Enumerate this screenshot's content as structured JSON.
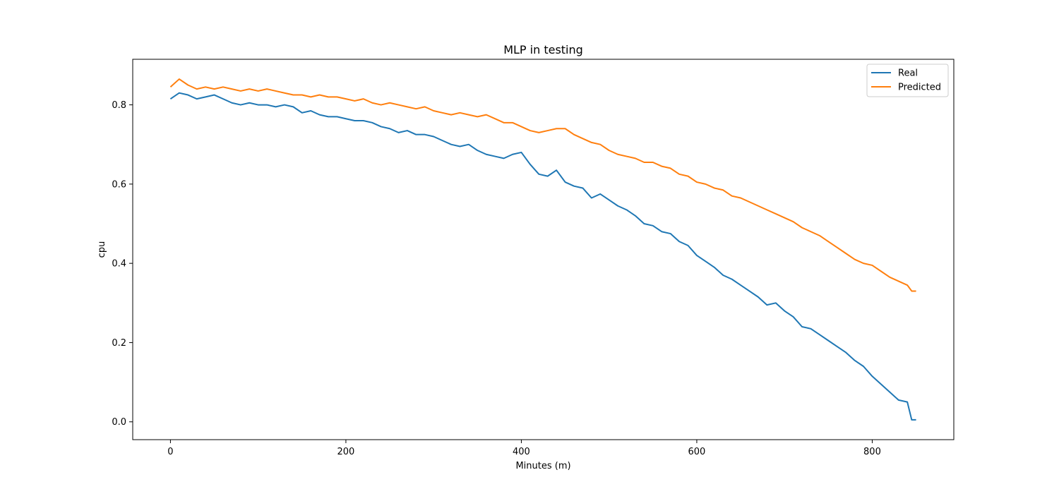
{
  "chart_data": {
    "type": "line",
    "title": "MLP in testing",
    "xlabel": "Minutes (m)",
    "ylabel": "cpu",
    "xlim": [
      -43,
      893
    ],
    "ylim": [
      -0.045,
      0.915
    ],
    "xticks": [
      0,
      200,
      400,
      600,
      800
    ],
    "xtick_labels": [
      "0",
      "200",
      "400",
      "600",
      "800"
    ],
    "yticks": [
      0.0,
      0.2,
      0.4,
      0.6,
      0.8
    ],
    "ytick_labels": [
      "0.0",
      "0.2",
      "0.4",
      "0.6",
      "0.8"
    ],
    "grid": false,
    "legend_position": "upper right",
    "series": [
      {
        "name": "Real",
        "color": "#1f77b4",
        "x": [
          0,
          10,
          20,
          30,
          40,
          50,
          60,
          70,
          80,
          90,
          100,
          110,
          120,
          130,
          140,
          150,
          160,
          170,
          180,
          190,
          200,
          210,
          220,
          230,
          240,
          250,
          260,
          270,
          280,
          290,
          300,
          310,
          320,
          330,
          340,
          350,
          360,
          370,
          380,
          390,
          400,
          410,
          420,
          430,
          440,
          450,
          460,
          470,
          480,
          490,
          500,
          510,
          520,
          530,
          540,
          550,
          560,
          570,
          580,
          590,
          600,
          610,
          620,
          630,
          640,
          650,
          660,
          670,
          680,
          690,
          700,
          710,
          720,
          730,
          740,
          750,
          760,
          770,
          780,
          790,
          800,
          810,
          820,
          830,
          840,
          845,
          850
        ],
        "y": [
          0.815,
          0.83,
          0.825,
          0.815,
          0.82,
          0.825,
          0.815,
          0.805,
          0.8,
          0.805,
          0.8,
          0.8,
          0.795,
          0.8,
          0.795,
          0.78,
          0.785,
          0.775,
          0.77,
          0.77,
          0.765,
          0.76,
          0.76,
          0.755,
          0.745,
          0.74,
          0.73,
          0.735,
          0.725,
          0.725,
          0.72,
          0.71,
          0.7,
          0.695,
          0.7,
          0.685,
          0.675,
          0.67,
          0.665,
          0.675,
          0.68,
          0.65,
          0.625,
          0.62,
          0.635,
          0.605,
          0.595,
          0.59,
          0.565,
          0.575,
          0.56,
          0.545,
          0.535,
          0.52,
          0.5,
          0.495,
          0.48,
          0.475,
          0.455,
          0.445,
          0.42,
          0.405,
          0.39,
          0.37,
          0.36,
          0.345,
          0.33,
          0.315,
          0.295,
          0.3,
          0.28,
          0.265,
          0.24,
          0.235,
          0.22,
          0.205,
          0.19,
          0.175,
          0.155,
          0.14,
          0.115,
          0.095,
          0.075,
          0.055,
          0.05,
          0.005,
          0.005
        ]
      },
      {
        "name": "Predicted",
        "color": "#ff7f0e",
        "x": [
          0,
          10,
          20,
          30,
          40,
          50,
          60,
          70,
          80,
          90,
          100,
          110,
          120,
          130,
          140,
          150,
          160,
          170,
          180,
          190,
          200,
          210,
          220,
          230,
          240,
          250,
          260,
          270,
          280,
          290,
          300,
          310,
          320,
          330,
          340,
          350,
          360,
          370,
          380,
          390,
          400,
          410,
          420,
          430,
          440,
          450,
          460,
          470,
          480,
          490,
          500,
          510,
          520,
          530,
          540,
          550,
          560,
          570,
          580,
          590,
          600,
          610,
          620,
          630,
          640,
          650,
          660,
          670,
          680,
          690,
          700,
          710,
          720,
          730,
          740,
          750,
          760,
          770,
          780,
          790,
          800,
          810,
          820,
          830,
          840,
          845,
          850
        ],
        "y": [
          0.845,
          0.865,
          0.85,
          0.84,
          0.845,
          0.84,
          0.845,
          0.84,
          0.835,
          0.84,
          0.835,
          0.84,
          0.835,
          0.83,
          0.825,
          0.825,
          0.82,
          0.825,
          0.82,
          0.82,
          0.815,
          0.81,
          0.815,
          0.805,
          0.8,
          0.805,
          0.8,
          0.795,
          0.79,
          0.795,
          0.785,
          0.78,
          0.775,
          0.78,
          0.775,
          0.77,
          0.775,
          0.765,
          0.755,
          0.755,
          0.745,
          0.735,
          0.73,
          0.735,
          0.74,
          0.74,
          0.725,
          0.715,
          0.705,
          0.7,
          0.685,
          0.675,
          0.67,
          0.665,
          0.655,
          0.655,
          0.645,
          0.64,
          0.625,
          0.62,
          0.605,
          0.6,
          0.59,
          0.585,
          0.57,
          0.565,
          0.555,
          0.545,
          0.535,
          0.525,
          0.515,
          0.505,
          0.49,
          0.48,
          0.47,
          0.455,
          0.44,
          0.425,
          0.41,
          0.4,
          0.395,
          0.38,
          0.365,
          0.355,
          0.345,
          0.33,
          0.33
        ]
      }
    ]
  }
}
